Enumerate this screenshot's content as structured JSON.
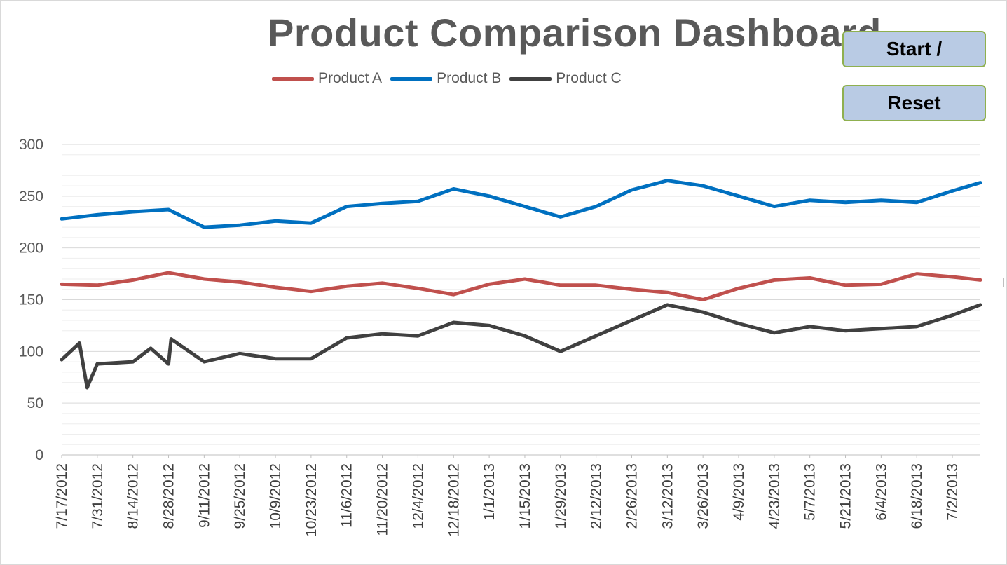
{
  "chart_data": {
    "type": "line",
    "title": "Product Comparison Dashboard",
    "xlabel": "",
    "ylabel": "",
    "ylim": [
      0,
      300
    ],
    "y_ticks": [
      0,
      50,
      100,
      150,
      200,
      250,
      300
    ],
    "x_tick_labels": [
      "7/17/2012",
      "7/31/2012",
      "8/14/2012",
      "8/28/2012",
      "9/11/2012",
      "9/25/2012",
      "10/9/2012",
      "10/23/2012",
      "11/6/2012",
      "11/20/2012",
      "12/4/2012",
      "12/18/2012",
      "1/1/2013",
      "1/15/2013",
      "1/29/2013",
      "2/12/2013",
      "2/26/2013",
      "3/12/2013",
      "3/26/2013",
      "4/9/2013",
      "4/23/2013",
      "5/7/2013",
      "5/21/2013",
      "6/4/2013",
      "6/18/2013",
      "7/2/2013"
    ],
    "x_range": [
      "7/17/2012",
      "7/13/2013"
    ],
    "grid": true,
    "legend": "top",
    "series": [
      {
        "name": "Product A",
        "color": "#c0504d",
        "x": [
          "7/17/2012",
          "7/31/2012",
          "8/14/2012",
          "8/28/2012",
          "9/11/2012",
          "9/25/2012",
          "10/9/2012",
          "10/23/2012",
          "11/6/2012",
          "11/20/2012",
          "12/4/2012",
          "12/18/2012",
          "1/1/2013",
          "1/15/2013",
          "1/29/2013",
          "2/12/2013",
          "2/26/2013",
          "3/12/2013",
          "3/26/2013",
          "4/9/2013",
          "4/23/2013",
          "5/7/2013",
          "5/21/2013",
          "6/4/2013",
          "6/18/2013",
          "7/2/2013",
          "7/13/2013"
        ],
        "values": [
          165,
          164,
          169,
          176,
          170,
          167,
          162,
          158,
          163,
          166,
          161,
          155,
          165,
          170,
          164,
          164,
          160,
          157,
          150,
          161,
          169,
          171,
          164,
          165,
          175,
          172,
          169
        ]
      },
      {
        "name": "Product B",
        "color": "#0070c0",
        "x": [
          "7/17/2012",
          "7/31/2012",
          "8/14/2012",
          "8/28/2012",
          "9/11/2012",
          "9/25/2012",
          "10/9/2012",
          "10/23/2012",
          "11/6/2012",
          "11/20/2012",
          "12/4/2012",
          "12/18/2012",
          "1/1/2013",
          "1/15/2013",
          "1/29/2013",
          "2/12/2013",
          "2/26/2013",
          "3/12/2013",
          "3/26/2013",
          "4/9/2013",
          "4/23/2013",
          "5/7/2013",
          "5/21/2013",
          "6/4/2013",
          "6/18/2013",
          "7/2/2013",
          "7/13/2013"
        ],
        "values": [
          228,
          232,
          235,
          237,
          220,
          222,
          226,
          224,
          240,
          243,
          245,
          257,
          250,
          240,
          230,
          240,
          256,
          265,
          260,
          250,
          240,
          246,
          244,
          246,
          244,
          255,
          263
        ]
      },
      {
        "name": "Product C",
        "color": "#404040",
        "x": [
          "7/17/2012",
          "7/24/2012",
          "7/27/2012",
          "7/31/2012",
          "8/14/2012",
          "8/21/2012",
          "8/28/2012",
          "8/29/2012",
          "9/11/2012",
          "9/25/2012",
          "10/9/2012",
          "10/23/2012",
          "11/6/2012",
          "11/20/2012",
          "12/4/2012",
          "12/18/2012",
          "1/1/2013",
          "1/15/2013",
          "1/29/2013",
          "2/12/2013",
          "2/26/2013",
          "3/12/2013",
          "3/26/2013",
          "4/9/2013",
          "4/23/2013",
          "5/7/2013",
          "5/21/2013",
          "6/4/2013",
          "6/18/2013",
          "7/2/2013",
          "7/13/2013"
        ],
        "values": [
          92,
          108,
          65,
          88,
          90,
          103,
          88,
          112,
          90,
          98,
          93,
          93,
          113,
          117,
          115,
          128,
          125,
          115,
          100,
          115,
          130,
          145,
          138,
          127,
          118,
          124,
          120,
          122,
          124,
          135,
          145
        ]
      }
    ]
  },
  "controls": {
    "start_label": "Start /",
    "reset_label": "Reset"
  }
}
